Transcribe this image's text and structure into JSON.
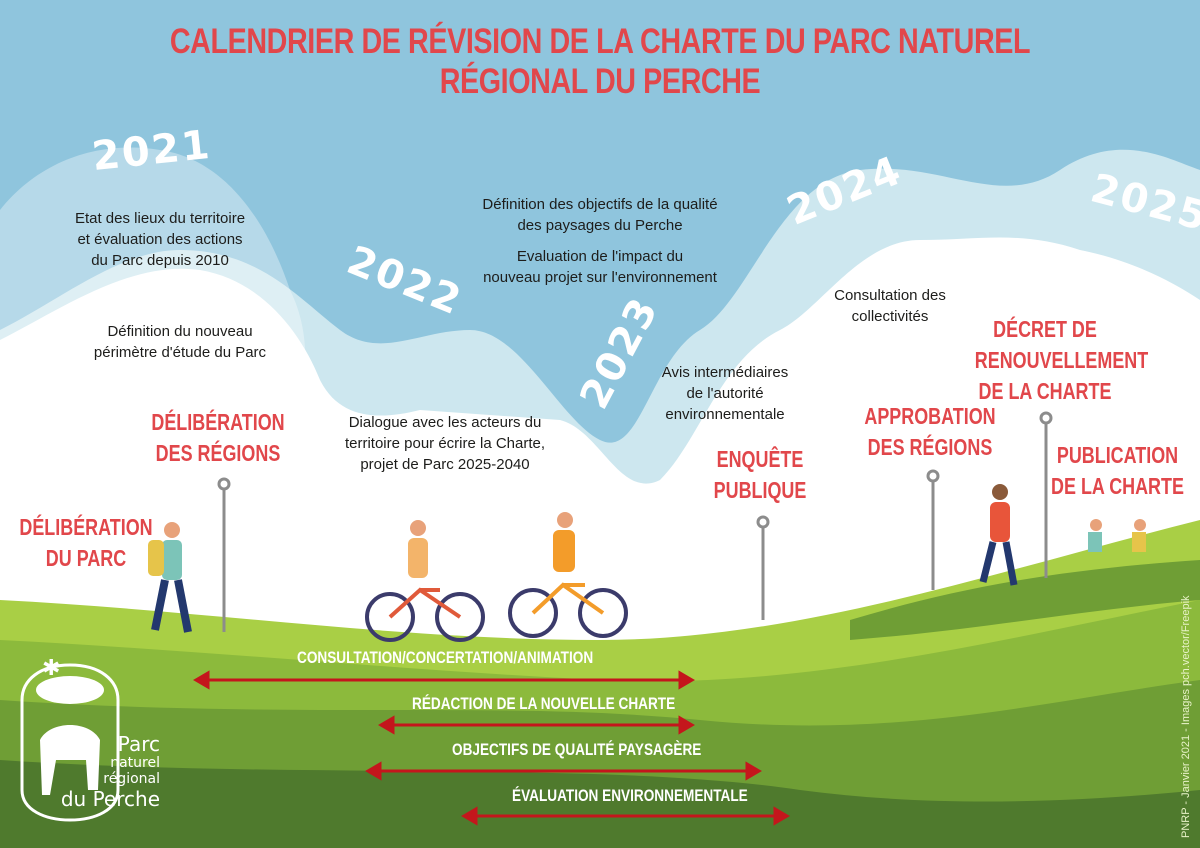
{
  "title": "CALENDRIER DE RÉVISION DE LA CHARTE DU PARC NATUREL RÉGIONAL DU PERCHE",
  "years": [
    "2021",
    "2022",
    "2023",
    "2024",
    "2025"
  ],
  "steps": {
    "etat_des_lieux": [
      "Etat des lieux du territoire",
      "et évaluation des actions",
      "du Parc depuis 2010"
    ],
    "perimetre": [
      "Définition du nouveau",
      "périmètre  d'étude du Parc"
    ],
    "dialogue": [
      "Dialogue avec les acteurs du",
      "territoire pour écrire la Charte,",
      "projet de Parc 2025-2040"
    ],
    "objectifs_paysages": [
      "Définition des objectifs de la qualité",
      "des paysages du Perche"
    ],
    "evaluation_impact": [
      "Evaluation de l'impact du",
      "nouveau projet sur l'environnement"
    ],
    "avis": [
      "Avis intermédiaires",
      "de l'autorité",
      "environnementale"
    ],
    "consultation": [
      "Consultation des",
      "collectivités"
    ]
  },
  "milestones": {
    "deliberation_parc": [
      "DÉLIBÉRATION",
      "DU PARC"
    ],
    "deliberation_regions": [
      "DÉLIBÉRATION",
      "DES RÉGIONS"
    ],
    "enquete": [
      "ENQUÊTE",
      "PUBLIQUE"
    ],
    "approbation": [
      "APPROBATION",
      "DES RÉGIONS"
    ],
    "decret": [
      "DÉCRET DE",
      "RENOUVELLEMENT",
      "DE LA CHARTE"
    ],
    "publication": [
      "PUBLICATION",
      "DE LA CHARTE"
    ]
  },
  "bars": [
    {
      "label": "CONSULTATION/CONCERTATION/ANIMATION"
    },
    {
      "label": "RÉDACTION DE LA NOUVELLE CHARTE"
    },
    {
      "label": "OBJECTIFS DE QUALITÉ PAYSAGÈRE"
    },
    {
      "label": "ÉVALUATION ENVIRONNEMENTALE"
    }
  ],
  "logo": {
    "line1": "Parc",
    "line2": "naturel",
    "line3": "régional",
    "line4": "du Perche"
  },
  "credit": "PNRP - Janvier 2021 - Images pch.vector/Freepik",
  "colors": {
    "accent_red": "#e1474b",
    "arrow_red": "#c4161c",
    "sky": "#8fc5dd",
    "grass": "#8cba3c"
  }
}
